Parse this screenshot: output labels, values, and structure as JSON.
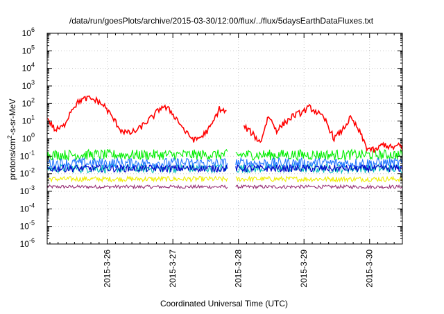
{
  "chart_data": {
    "type": "line",
    "title": "/data/run/goesPlots/archive/2015-03-30/12:00/flux/../flux/5daysEarthDataFluxes.txt",
    "xlabel": "Coordinated Universal Time (UTC)",
    "ylabel": "protons/cm²-s-sr-MeV",
    "ylabel_parts": {
      "pre": "protons/cm",
      "sup": "2",
      "post": "-s-sr-MeV"
    },
    "y_scale": "log",
    "ylim": [
      1e-06,
      1000000.0
    ],
    "y_ticks": [
      {
        "exp": -6,
        "base": "10",
        "sup": "-6"
      },
      {
        "exp": -5,
        "base": "10",
        "sup": "-5"
      },
      {
        "exp": -4,
        "base": "10",
        "sup": "-4"
      },
      {
        "exp": -3,
        "base": "10",
        "sup": "-3"
      },
      {
        "exp": -2,
        "base": "10",
        "sup": "-2"
      },
      {
        "exp": -1,
        "base": "10",
        "sup": "-1"
      },
      {
        "exp": 0,
        "base": "10",
        "sup": "0"
      },
      {
        "exp": 1,
        "base": "10",
        "sup": "1"
      },
      {
        "exp": 2,
        "base": "10",
        "sup": "2"
      },
      {
        "exp": 3,
        "base": "10",
        "sup": "3"
      },
      {
        "exp": 4,
        "base": "10",
        "sup": "4"
      },
      {
        "exp": 5,
        "base": "10",
        "sup": "5"
      },
      {
        "exp": 6,
        "base": "10",
        "sup": "6"
      }
    ],
    "xlim": [
      "2015-03-25 02:00",
      "2015-03-30 12:00"
    ],
    "x_ticks": [
      {
        "label": "2015-3-26",
        "x": "2015-03-26 00:00"
      },
      {
        "label": "2015-3-27",
        "x": "2015-03-27 00:00"
      },
      {
        "label": "2015-3-28",
        "x": "2015-03-28 00:00"
      },
      {
        "label": "2015-3-29",
        "x": "2015-03-29 00:00"
      },
      {
        "label": "2015-3-30",
        "x": "2015-03-30 00:00"
      }
    ],
    "data_gap": [
      "2015-03-27 20:00",
      "2015-03-27 23:00"
    ],
    "grid": true,
    "series": [
      {
        "color": "#ff0000",
        "kind": "line",
        "x": [
          "2015-03-25 02:00",
          "2015-03-25 05:00",
          "2015-03-25 08:00",
          "2015-03-25 11:00",
          "2015-03-25 14:00",
          "2015-03-25 17:00",
          "2015-03-25 20:00",
          "2015-03-25 23:00",
          "2015-03-26 02:00",
          "2015-03-26 05:00",
          "2015-03-26 08:00",
          "2015-03-26 11:00",
          "2015-03-26 14:00",
          "2015-03-26 17:00",
          "2015-03-26 20:00",
          "2015-03-26 23:00",
          "2015-03-27 02:00",
          "2015-03-27 05:00",
          "2015-03-27 08:00",
          "2015-03-27 11:00",
          "2015-03-27 14:00",
          "2015-03-27 17:00",
          "2015-03-27 20:00",
          "2015-03-27 23:00",
          "2015-03-28 02:00",
          "2015-03-28 05:00",
          "2015-03-28 08:00",
          "2015-03-28 11:00",
          "2015-03-28 14:00",
          "2015-03-28 17:00",
          "2015-03-28 20:00",
          "2015-03-28 23:00",
          "2015-03-29 02:00",
          "2015-03-29 05:00",
          "2015-03-29 08:00",
          "2015-03-29 11:00",
          "2015-03-29 14:00",
          "2015-03-29 17:00",
          "2015-03-29 20:00",
          "2015-03-29 23:00",
          "2015-03-30 02:00",
          "2015-03-30 05:00",
          "2015-03-30 08:00",
          "2015-03-30 11:00",
          "2015-03-30 12:00"
        ],
        "y": [
          15,
          3,
          5,
          50,
          150,
          200,
          150,
          70,
          15,
          3,
          2,
          3,
          8,
          20,
          70,
          40,
          10,
          2,
          0.8,
          1.5,
          5,
          50,
          30,
          null,
          5,
          2,
          0.6,
          20,
          3,
          8,
          20,
          30,
          60,
          30,
          10,
          1,
          3,
          15,
          3,
          0.3,
          0.2,
          0.5,
          0.3,
          0.4,
          0.35
        ]
      },
      {
        "color": "#00ee00",
        "kind": "noisy_band",
        "level": 0.12,
        "spread": 2.0
      },
      {
        "color": "#2277ff",
        "kind": "noisy_band",
        "level": 0.04,
        "spread": 2.0
      },
      {
        "color": "#00bbbb",
        "kind": "noisy_band",
        "level": 0.02,
        "spread": 1.8
      },
      {
        "color": "#0000cc",
        "kind": "noisy_band",
        "level": 0.02,
        "spread": 1.6
      },
      {
        "color": "#eeee00",
        "kind": "noisy_band",
        "level": 0.005,
        "spread": 1.4
      },
      {
        "color": "#993377",
        "kind": "noisy_band",
        "level": 0.0018,
        "spread": 1.25
      }
    ]
  }
}
